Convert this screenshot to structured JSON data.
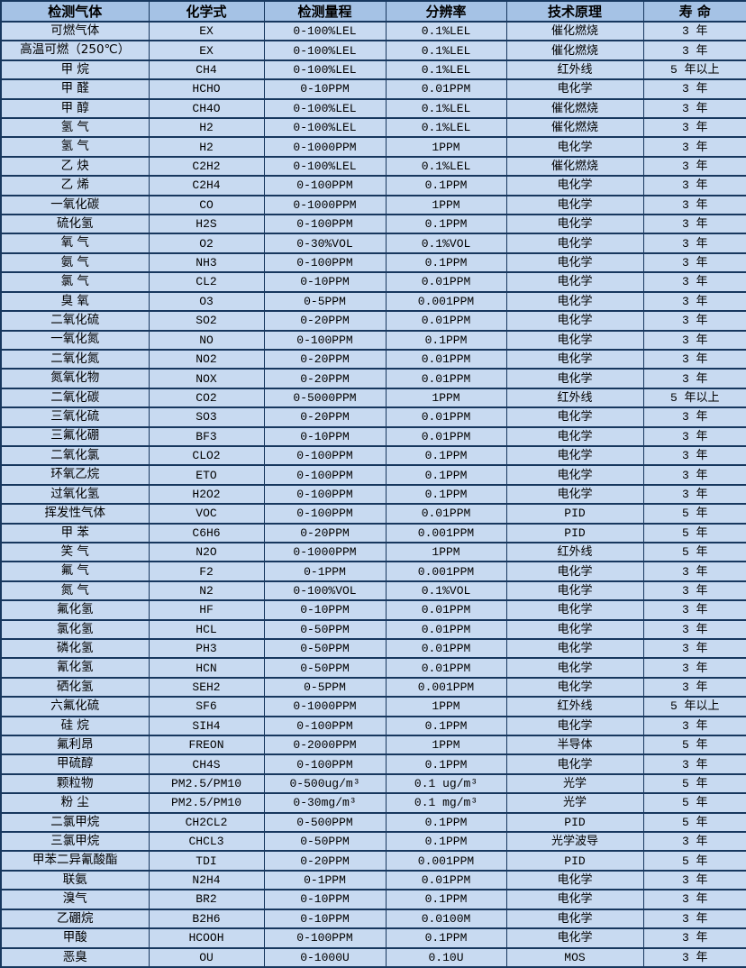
{
  "colors": {
    "border": "#17375e",
    "header_bg": "#a5c2e5",
    "row_bg": "#c8daf1",
    "text": "#000000"
  },
  "table": {
    "column_keys": [
      "gas",
      "formula",
      "range",
      "resolution",
      "principle",
      "lifespan"
    ],
    "columns": [
      "检测气体",
      "化学式",
      "检测量程",
      "分辨率",
      "技术原理",
      "寿 命"
    ],
    "rows": [
      [
        "可燃气体",
        "EX",
        "0-100%LEL",
        "0.1%LEL",
        "催化燃烧",
        "3 年"
      ],
      [
        "高温可燃（250℃）",
        "EX",
        "0-100%LEL",
        "0.1%LEL",
        "催化燃烧",
        "3 年"
      ],
      [
        "甲 烷",
        "CH4",
        "0-100%LEL",
        "0.1%LEL",
        "红外线",
        "5 年以上"
      ],
      [
        "甲 醛",
        "HCHO",
        "0-10PPM",
        "0.01PPM",
        "电化学",
        "3 年"
      ],
      [
        "甲 醇",
        "CH4O",
        "0-100%LEL",
        "0.1%LEL",
        "催化燃烧",
        "3 年"
      ],
      [
        "氢 气",
        "H2",
        "0-100%LEL",
        "0.1%LEL",
        "催化燃烧",
        "3 年"
      ],
      [
        "氢 气",
        "H2",
        "0-1000PPM",
        "1PPM",
        "电化学",
        "3 年"
      ],
      [
        "乙 炔",
        "C2H2",
        "0-100%LEL",
        "0.1%LEL",
        "催化燃烧",
        "3 年"
      ],
      [
        "乙 烯",
        "C2H4",
        "0-100PPM",
        "0.1PPM",
        "电化学",
        "3 年"
      ],
      [
        "一氧化碳",
        "CO",
        "0-1000PPM",
        "1PPM",
        "电化学",
        "3 年"
      ],
      [
        "硫化氢",
        "H2S",
        "0-100PPM",
        "0.1PPM",
        "电化学",
        "3 年"
      ],
      [
        "氧 气",
        "O2",
        "0-30%VOL",
        "0.1%VOL",
        "电化学",
        "3 年"
      ],
      [
        "氨 气",
        "NH3",
        "0-100PPM",
        "0.1PPM",
        "电化学",
        "3 年"
      ],
      [
        "氯 气",
        "CL2",
        "0-10PPM",
        "0.01PPM",
        "电化学",
        "3 年"
      ],
      [
        "臭 氧",
        "O3",
        "0-5PPM",
        "0.001PPM",
        "电化学",
        "3 年"
      ],
      [
        "二氧化硫",
        "SO2",
        "0-20PPM",
        "0.01PPM",
        "电化学",
        "3 年"
      ],
      [
        "一氧化氮",
        "NO",
        "0-100PPM",
        "0.1PPM",
        "电化学",
        "3 年"
      ],
      [
        "二氧化氮",
        "NO2",
        "0-20PPM",
        "0.01PPM",
        "电化学",
        "3 年"
      ],
      [
        "氮氧化物",
        "NOX",
        "0-20PPM",
        "0.01PPM",
        "电化学",
        "3 年"
      ],
      [
        "二氧化碳",
        "CO2",
        "0-5000PPM",
        "1PPM",
        "红外线",
        "5 年以上"
      ],
      [
        "三氧化硫",
        "SO3",
        "0-20PPM",
        "0.01PPM",
        "电化学",
        "3 年"
      ],
      [
        "三氟化硼",
        "BF3",
        "0-10PPM",
        "0.01PPM",
        "电化学",
        "3 年"
      ],
      [
        "二氧化氯",
        "CLO2",
        "0-100PPM",
        "0.1PPM",
        "电化学",
        "3 年"
      ],
      [
        "环氧乙烷",
        "ETO",
        "0-100PPM",
        "0.1PPM",
        "电化学",
        "3 年"
      ],
      [
        "过氧化氢",
        "H2O2",
        "0-100PPM",
        "0.1PPM",
        "电化学",
        "3 年"
      ],
      [
        "挥发性气体",
        "VOC",
        "0-100PPM",
        "0.01PPM",
        "PID",
        "5 年"
      ],
      [
        "甲 苯",
        "C6H6",
        "0-20PPM",
        "0.001PPM",
        "PID",
        "5 年"
      ],
      [
        "笑 气",
        "N2O",
        "0-1000PPM",
        "1PPM",
        "红外线",
        "5 年"
      ],
      [
        "氟 气",
        "F2",
        "0-1PPM",
        "0.001PPM",
        "电化学",
        "3 年"
      ],
      [
        "氮 气",
        "N2",
        "0-100%VOL",
        "0.1%VOL",
        "电化学",
        "3 年"
      ],
      [
        "氟化氢",
        "HF",
        "0-10PPM",
        "0.01PPM",
        "电化学",
        "3 年"
      ],
      [
        "氯化氢",
        "HCL",
        "0-50PPM",
        "0.01PPM",
        "电化学",
        "3 年"
      ],
      [
        "磷化氢",
        "PH3",
        "0-50PPM",
        "0.01PPM",
        "电化学",
        "3 年"
      ],
      [
        "氰化氢",
        "HCN",
        "0-50PPM",
        "0.01PPM",
        "电化学",
        "3 年"
      ],
      [
        "硒化氢",
        "SEH2",
        "0-5PPM",
        "0.001PPM",
        "电化学",
        "3 年"
      ],
      [
        "六氟化硫",
        "SF6",
        "0-1000PPM",
        "1PPM",
        "红外线",
        "5 年以上"
      ],
      [
        "硅 烷",
        "SIH4",
        "0-100PPM",
        "0.1PPM",
        "电化学",
        "3 年"
      ],
      [
        "氟利昂",
        "FREON",
        "0-2000PPM",
        "1PPM",
        "半导体",
        "5 年"
      ],
      [
        "甲硫醇",
        "CH4S",
        "0-100PPM",
        "0.1PPM",
        "电化学",
        "3 年"
      ],
      [
        "颗粒物",
        "PM2.5/PM10",
        "0-500ug/m³",
        "0.1 ug/m³",
        "光学",
        "5 年"
      ],
      [
        "粉 尘",
        "PM2.5/PM10",
        "0-30mg/m³",
        "0.1 mg/m³",
        "光学",
        "5 年"
      ],
      [
        "二氯甲烷",
        "CH2CL2",
        "0-500PPM",
        "0.1PPM",
        "PID",
        "5 年"
      ],
      [
        "三氯甲烷",
        "CHCL3",
        "0-50PPM",
        "0.1PPM",
        "光学波导",
        "3 年"
      ],
      [
        "甲苯二异氰酸酯",
        "TDI",
        "0-20PPM",
        "0.001PPM",
        "PID",
        "5 年"
      ],
      [
        "联氨",
        "N2H4",
        "0-1PPM",
        "0.01PPM",
        "电化学",
        "3 年"
      ],
      [
        "溴气",
        "BR2",
        "0-10PPM",
        "0.1PPM",
        "电化学",
        "3 年"
      ],
      [
        "乙硼烷",
        "B2H6",
        "0-10PPM",
        "0.0100M",
        "电化学",
        "3 年"
      ],
      [
        "甲酸",
        "HCOOH",
        "0-100PPM",
        "0.1PPM",
        "电化学",
        "3 年"
      ],
      [
        "恶臭",
        "OU",
        "0-1000U",
        "0.10U",
        "MOS",
        "3 年"
      ]
    ]
  }
}
